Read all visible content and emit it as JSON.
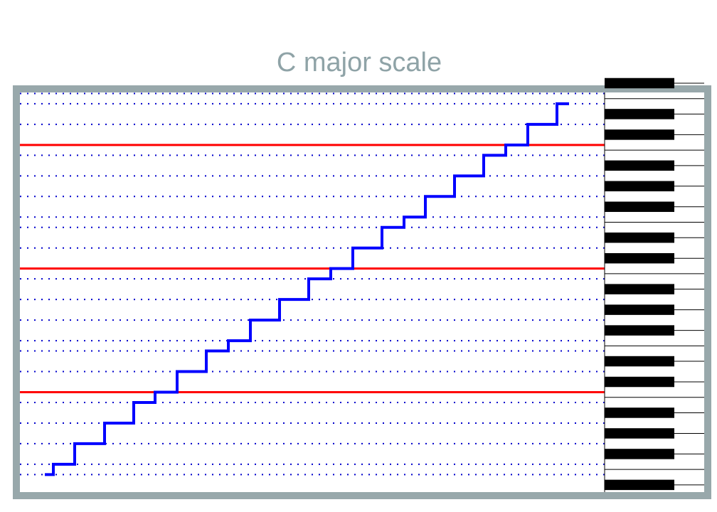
{
  "chart_data": {
    "type": "line",
    "drawstyle": "steps-post",
    "title": "C major scale",
    "series": [
      {
        "color": "#0000ff",
        "x": [
          35,
          47,
          77,
          119,
          160,
          190,
          221,
          262,
          293,
          324,
          365,
          406,
          437,
          468,
          509,
          540,
          570,
          611,
          652,
          683,
          714,
          755,
          772
        ],
        "values": [
          40,
          41,
          43,
          45,
          47,
          48,
          50,
          52,
          53,
          55,
          57,
          59,
          60,
          62,
          64,
          65,
          67,
          69,
          71,
          72,
          74,
          76,
          76
        ]
      }
    ],
    "xlim": [
      0,
      822
    ],
    "ylim": [
      38.3,
      77.1
    ],
    "hlines": [
      48,
      60,
      72
    ],
    "hline_color": "#ff0000",
    "grid": true,
    "grid_color": "#0000cc",
    "keyboard": true
  }
}
